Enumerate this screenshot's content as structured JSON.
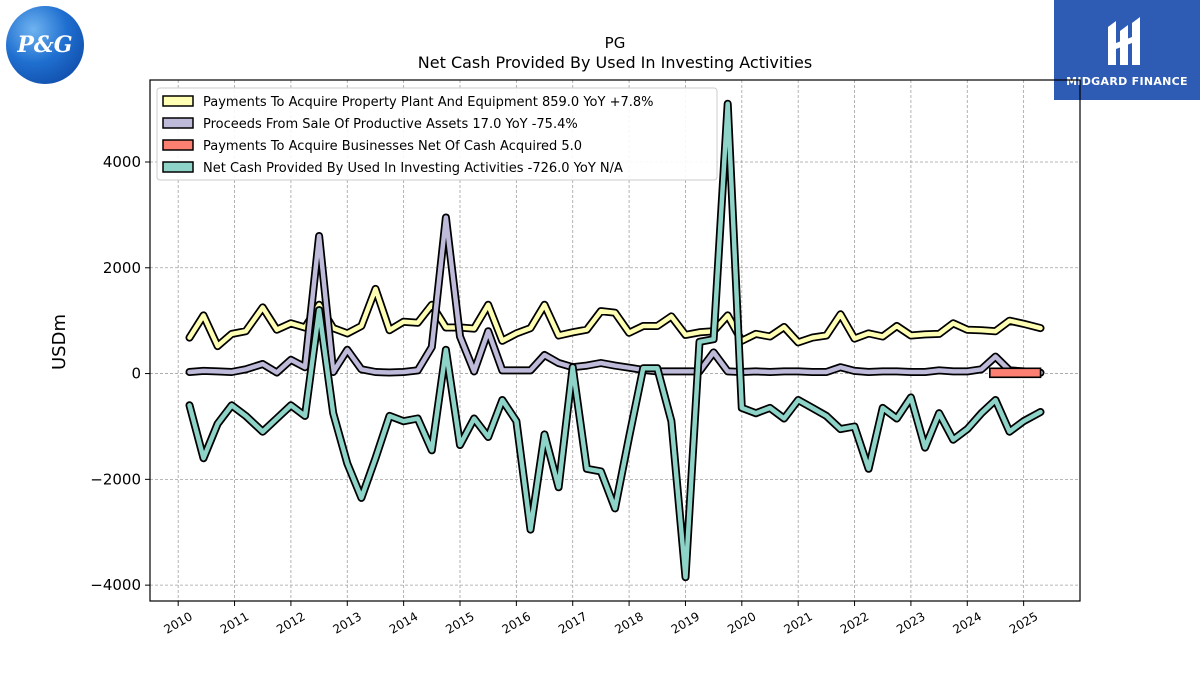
{
  "logos": {
    "left_text": "P&G",
    "right_text": "MIDGARD FINANCE"
  },
  "chart_data": {
    "type": "line",
    "title": "PG",
    "subtitle": "Net Cash Provided By Used In Investing Activities",
    "xlabel": "",
    "ylabel": "USDm",
    "xlim": [
      2009.5,
      2026.0
    ],
    "ylim": [
      -4300,
      5550
    ],
    "yticks": [
      -4000,
      -2000,
      0,
      2000,
      4000
    ],
    "xticks": [
      "2010",
      "2011",
      "2012",
      "2013",
      "2014",
      "2015",
      "2016",
      "2017",
      "2018",
      "2019",
      "2020",
      "2021",
      "2022",
      "2023",
      "2024",
      "2025"
    ],
    "grid": true,
    "legend_position": "top-left",
    "series": [
      {
        "name": "Payments To Acquire Property Plant And Equipment  859.0 YoY +7.8%",
        "color": "#ffffb3",
        "x": [
          2010.2,
          2010.45,
          2010.7,
          2010.95,
          2011.2,
          2011.5,
          2011.75,
          2012.0,
          2012.25,
          2012.5,
          2012.75,
          2013.0,
          2013.25,
          2013.5,
          2013.75,
          2014.0,
          2014.25,
          2014.5,
          2014.75,
          2015.0,
          2015.25,
          2015.5,
          2015.75,
          2016.0,
          2016.25,
          2016.5,
          2016.75,
          2017.0,
          2017.25,
          2017.5,
          2017.75,
          2018.0,
          2018.25,
          2018.5,
          2018.75,
          2019.0,
          2019.25,
          2019.5,
          2019.75,
          2020.0,
          2020.25,
          2020.5,
          2020.75,
          2021.0,
          2021.25,
          2021.5,
          2021.75,
          2022.0,
          2022.25,
          2022.5,
          2022.75,
          2023.0,
          2023.25,
          2023.5,
          2023.75,
          2024.0,
          2024.25,
          2024.5,
          2024.75,
          2025.0,
          2025.3
        ],
        "values": [
          680,
          1100,
          520,
          750,
          800,
          1250,
          830,
          950,
          870,
          1300,
          860,
          760,
          900,
          1600,
          820,
          980,
          960,
          1300,
          870,
          870,
          850,
          1300,
          620,
          760,
          860,
          1300,
          720,
          780,
          830,
          1180,
          1150,
          770,
          900,
          900,
          1080,
          730,
          780,
          800,
          1100,
          620,
          750,
          700,
          880,
          590,
          680,
          720,
          1120,
          660,
          760,
          700,
          900,
          720,
          740,
          750,
          950,
          830,
          820,
          800,
          1000,
          940,
          859
        ]
      },
      {
        "name": "Proceeds From Sale Of Productive Assets  17.0 YoY -75.4%",
        "color": "#bebada",
        "x": [
          2010.2,
          2010.45,
          2010.7,
          2010.95,
          2011.2,
          2011.5,
          2011.75,
          2012.0,
          2012.25,
          2012.5,
          2012.75,
          2013.0,
          2013.25,
          2013.5,
          2013.75,
          2014.0,
          2014.25,
          2014.5,
          2014.75,
          2015.0,
          2015.25,
          2015.5,
          2015.75,
          2016.0,
          2016.25,
          2016.5,
          2016.75,
          2017.0,
          2017.25,
          2017.5,
          2017.75,
          2018.0,
          2018.25,
          2018.5,
          2018.75,
          2019.0,
          2019.25,
          2019.5,
          2019.75,
          2020.0,
          2020.25,
          2020.5,
          2020.75,
          2021.0,
          2021.25,
          2021.5,
          2021.75,
          2022.0,
          2022.25,
          2022.5,
          2022.75,
          2023.0,
          2023.25,
          2023.5,
          2023.75,
          2024.0,
          2024.25,
          2024.5,
          2024.75,
          2025.0,
          2025.3
        ],
        "values": [
          30,
          50,
          40,
          30,
          80,
          180,
          20,
          260,
          120,
          2600,
          30,
          450,
          80,
          30,
          20,
          30,
          60,
          500,
          2950,
          700,
          40,
          800,
          60,
          60,
          60,
          350,
          200,
          120,
          150,
          200,
          150,
          110,
          70,
          40,
          40,
          40,
          40,
          400,
          40,
          30,
          40,
          30,
          40,
          40,
          30,
          30,
          120,
          50,
          30,
          40,
          40,
          30,
          30,
          60,
          40,
          40,
          80,
          320,
          60,
          40,
          17
        ]
      },
      {
        "name": "Payments To Acquire Businesses Net Of Cash Acquired  5.0",
        "color": "#fb8072",
        "x": [
          2024.4,
          2025.3
        ],
        "values": [
          5,
          5
        ]
      },
      {
        "name": "Net Cash Provided By Used In Investing Activities  -726.0 YoY N/A",
        "color": "#8dd3c7",
        "x": [
          2010.2,
          2010.45,
          2010.7,
          2010.95,
          2011.2,
          2011.5,
          2011.75,
          2012.0,
          2012.25,
          2012.5,
          2012.75,
          2013.0,
          2013.25,
          2013.5,
          2013.75,
          2014.0,
          2014.25,
          2014.5,
          2014.75,
          2015.0,
          2015.25,
          2015.5,
          2015.75,
          2016.0,
          2016.25,
          2016.5,
          2016.75,
          2017.0,
          2017.25,
          2017.5,
          2017.75,
          2018.0,
          2018.25,
          2018.5,
          2018.75,
          2019.0,
          2019.25,
          2019.5,
          2019.75,
          2020.0,
          2020.25,
          2020.5,
          2020.75,
          2021.0,
          2021.25,
          2021.5,
          2021.75,
          2022.0,
          2022.25,
          2022.5,
          2022.75,
          2023.0,
          2023.25,
          2023.5,
          2023.75,
          2024.0,
          2024.25,
          2024.5,
          2024.75,
          2025.0,
          2025.3
        ],
        "values": [
          -600,
          -1600,
          -950,
          -600,
          -800,
          -1100,
          -850,
          -600,
          -800,
          1200,
          -750,
          -1700,
          -2350,
          -1600,
          -800,
          -900,
          -850,
          -1450,
          450,
          -1350,
          -850,
          -1200,
          -500,
          -900,
          -2950,
          -1150,
          -2150,
          120,
          -1800,
          -1850,
          -2550,
          -1200,
          100,
          100,
          -900,
          -3850,
          600,
          650,
          5100,
          -650,
          -750,
          -650,
          -850,
          -500,
          -650,
          -800,
          -1050,
          -1000,
          -1800,
          -650,
          -850,
          -450,
          -1400,
          -750,
          -1250,
          -1050,
          -750,
          -500,
          -1100,
          -900,
          -726
        ]
      }
    ]
  }
}
